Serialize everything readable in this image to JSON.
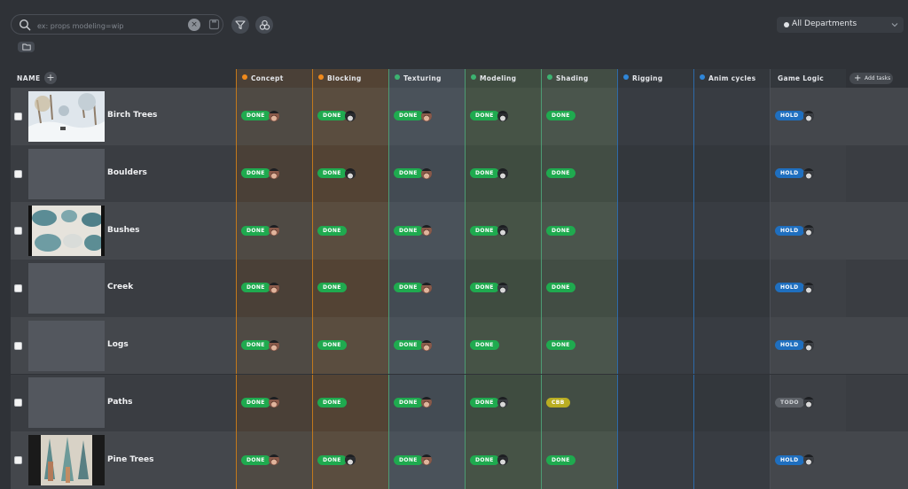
{
  "search": {
    "placeholder": "ex: props modeling=wip",
    "clear_label": "×"
  },
  "department_filter": {
    "selected": "All Departments"
  },
  "table": {
    "name_header": "NAME",
    "add_column_label": "+",
    "add_tasks_label": "Add tasks",
    "columns": [
      {
        "label": "Concept",
        "dot": "#f08a1c",
        "bg": "#4f4a44",
        "bgAlt": "#4a4037",
        "line": "#c2781c"
      },
      {
        "label": "Blocking",
        "dot": "#f08a1c",
        "bg": "#5a4d3f",
        "bgAlt": "#534334",
        "line": "#c2781c"
      },
      {
        "label": "Texturing",
        "dot": "#3cb371",
        "bg": "#4a525a",
        "bgAlt": "#434b53",
        "line": "#4d9b74"
      },
      {
        "label": "Modeling",
        "dot": "#3cb371",
        "bg": "#465346",
        "bgAlt": "#3f4c40",
        "line": "#4d9b74"
      },
      {
        "label": "Shading",
        "dot": "#3cb371",
        "bg": "#4a554c",
        "bgAlt": "#424d44",
        "line": "#4d9b74"
      },
      {
        "label": "Rigging",
        "dot": "#2f86d8",
        "bg": "#383c42",
        "bgAlt": "#33373c",
        "line": "#2d6aa8"
      },
      {
        "label": "Anim cycles",
        "dot": "#2f86d8",
        "bg": "#383c42",
        "bgAlt": "#33373c",
        "line": "#2d6aa8"
      },
      {
        "label": "Game Logic",
        "dot": "",
        "bg": "#44474c",
        "bgAlt": "#3d4045",
        "line": "#4a4e55"
      }
    ],
    "status_colors": {
      "DONE": "#1faa4f",
      "HOLD": "#1f6fbf",
      "CBB": "#b9ad22",
      "TODO": "#5e6268"
    },
    "rows": [
      {
        "name": "Birch Trees",
        "thumb": "snow",
        "cells": [
          [
            "DONE",
            "a"
          ],
          [
            "DONE",
            "b"
          ],
          [
            "DONE",
            "a"
          ],
          [
            "DONE",
            "b"
          ],
          [
            "DONE",
            ""
          ],
          [
            "",
            ""
          ],
          [
            "",
            ""
          ],
          [
            "HOLD",
            "c"
          ]
        ]
      },
      {
        "name": "Boulders",
        "thumb": "",
        "cells": [
          [
            "DONE",
            "a"
          ],
          [
            "DONE",
            "b"
          ],
          [
            "DONE",
            "a"
          ],
          [
            "DONE",
            "b"
          ],
          [
            "DONE",
            ""
          ],
          [
            "",
            ""
          ],
          [
            "",
            ""
          ],
          [
            "HOLD",
            "c"
          ]
        ]
      },
      {
        "name": "Bushes",
        "thumb": "bushes",
        "cells": [
          [
            "DONE",
            "a"
          ],
          [
            "DONE",
            ""
          ],
          [
            "DONE",
            "a"
          ],
          [
            "DONE",
            "b"
          ],
          [
            "DONE",
            ""
          ],
          [
            "",
            ""
          ],
          [
            "",
            ""
          ],
          [
            "HOLD",
            "c"
          ]
        ]
      },
      {
        "name": "Creek",
        "thumb": "",
        "cells": [
          [
            "DONE",
            "a"
          ],
          [
            "DONE",
            ""
          ],
          [
            "DONE",
            "a"
          ],
          [
            "DONE",
            "c"
          ],
          [
            "DONE",
            ""
          ],
          [
            "",
            ""
          ],
          [
            "",
            ""
          ],
          [
            "HOLD",
            "c"
          ]
        ]
      },
      {
        "name": "Logs",
        "thumb": "",
        "cells": [
          [
            "DONE",
            "a"
          ],
          [
            "DONE",
            ""
          ],
          [
            "DONE",
            "a"
          ],
          [
            "DONE",
            ""
          ],
          [
            "DONE",
            ""
          ],
          [
            "",
            ""
          ],
          [
            "",
            ""
          ],
          [
            "HOLD",
            "c"
          ]
        ]
      },
      {
        "name": "Paths",
        "thumb": "",
        "cells": [
          [
            "DONE",
            "a"
          ],
          [
            "DONE",
            ""
          ],
          [
            "DONE",
            "a"
          ],
          [
            "DONE",
            "c"
          ],
          [
            "CBB",
            ""
          ],
          [
            "",
            ""
          ],
          [
            "",
            ""
          ],
          [
            "TODO",
            "c"
          ]
        ]
      },
      {
        "name": "Pine Trees",
        "thumb": "pines",
        "cells": [
          [
            "DONE",
            "a"
          ],
          [
            "DONE",
            "b"
          ],
          [
            "DONE",
            "a"
          ],
          [
            "DONE",
            "b"
          ],
          [
            "DONE",
            ""
          ],
          [
            "",
            ""
          ],
          [
            "",
            ""
          ],
          [
            "HOLD",
            "c"
          ]
        ]
      }
    ]
  }
}
